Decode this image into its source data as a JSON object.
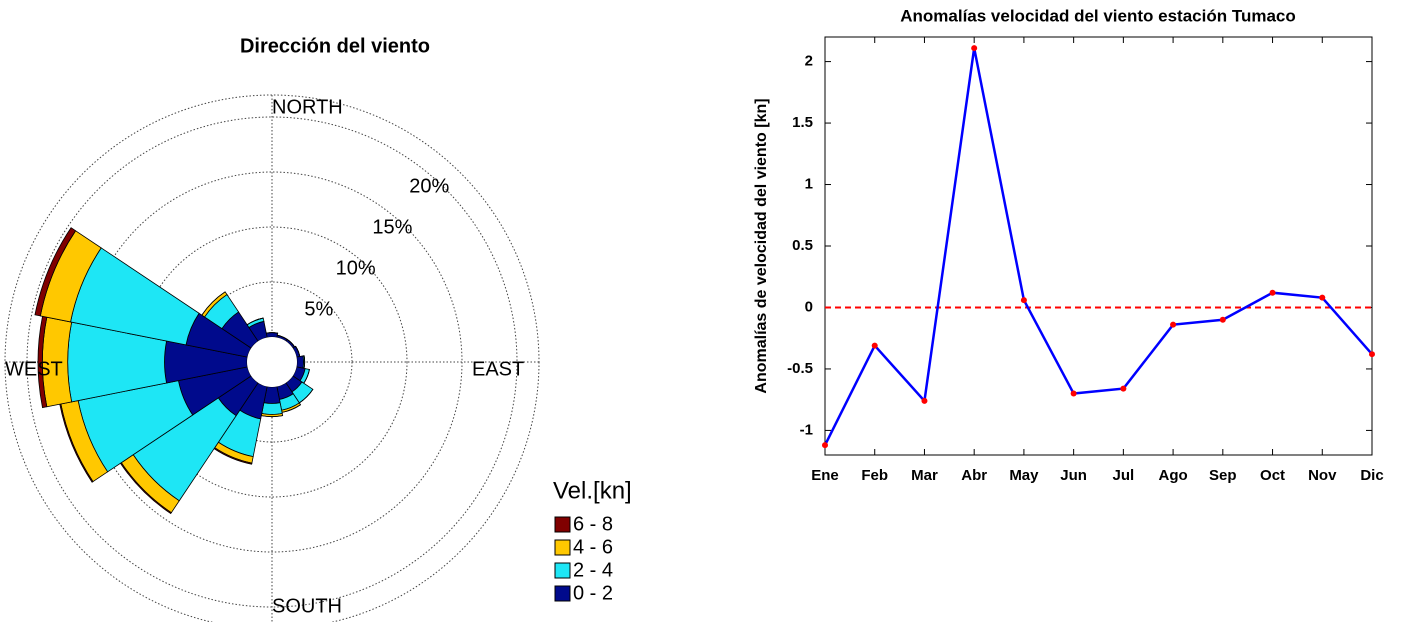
{
  "chart_data": [
    {
      "type": "windrose",
      "title": "Dirección del viento",
      "directions": [
        0,
        22.5,
        45,
        67.5,
        90,
        112.5,
        135,
        157.5,
        180,
        202.5,
        225,
        247.5,
        270,
        292.5,
        315,
        337.5
      ],
      "direction_labels": [
        "NORTH",
        "EAST",
        "SOUTH",
        "WEST"
      ],
      "rlim": [
        0,
        22
      ],
      "rticks": [
        {
          "value": 5,
          "label": "5%"
        },
        {
          "value": 10,
          "label": "10%"
        },
        {
          "value": 15,
          "label": "15%"
        },
        {
          "value": 20,
          "label": "20%"
        }
      ],
      "legend_title": "Vel.[kn]",
      "series": [
        {
          "name": "0 - 2",
          "color": "#000a8c",
          "values": [
            0.4,
            0.2,
            0.2,
            0.3,
            0.6,
            0.8,
            1.0,
            1.2,
            1.5,
            3.0,
            3.6,
            6.4,
            7.5,
            5.7,
            3.2,
            1.5
          ]
        },
        {
          "name": "2 - 4",
          "color": "#1ee6f5",
          "values": [
            0,
            0,
            0,
            0,
            0.1,
            0.4,
            1.2,
            1.0,
            1.0,
            3.5,
            9.3,
            9.3,
            8.8,
            10.7,
            1.9,
            0.3
          ]
        },
        {
          "name": "4 - 6",
          "color": "#ffc800",
          "values": [
            0,
            0,
            0,
            0,
            0,
            0,
            0,
            0.2,
            0.2,
            0.6,
            1.3,
            1.6,
            2.3,
            2.8,
            0.3,
            0
          ]
        },
        {
          "name": "6 - 8",
          "color": "#800000",
          "values": [
            0,
            0,
            0,
            0,
            0,
            0,
            0,
            0,
            0,
            0.1,
            0.1,
            0.1,
            0.4,
            0.5,
            0,
            0
          ]
        }
      ]
    },
    {
      "type": "line",
      "title": "Anomalías velocidad del viento estación Tumaco",
      "ylabel": "Anomalías de velocidad del viento [kn]",
      "categories": [
        "Ene",
        "Feb",
        "Mar",
        "Abr",
        "May",
        "Jun",
        "Jul",
        "Ago",
        "Sep",
        "Oct",
        "Nov",
        "Dic"
      ],
      "values": [
        -1.12,
        -0.31,
        -0.76,
        2.11,
        0.06,
        -0.7,
        -0.66,
        -0.14,
        -0.1,
        0.12,
        0.08,
        -0.38
      ],
      "color": "#0000ff",
      "marker_color": "#ff0000",
      "ylim": [
        -1.2,
        2.2
      ],
      "yticks": [
        -1,
        -0.5,
        0,
        0.5,
        1,
        1.5,
        2
      ],
      "reference_line": {
        "value": 0,
        "color": "#ff0000",
        "dashed": true
      }
    }
  ]
}
